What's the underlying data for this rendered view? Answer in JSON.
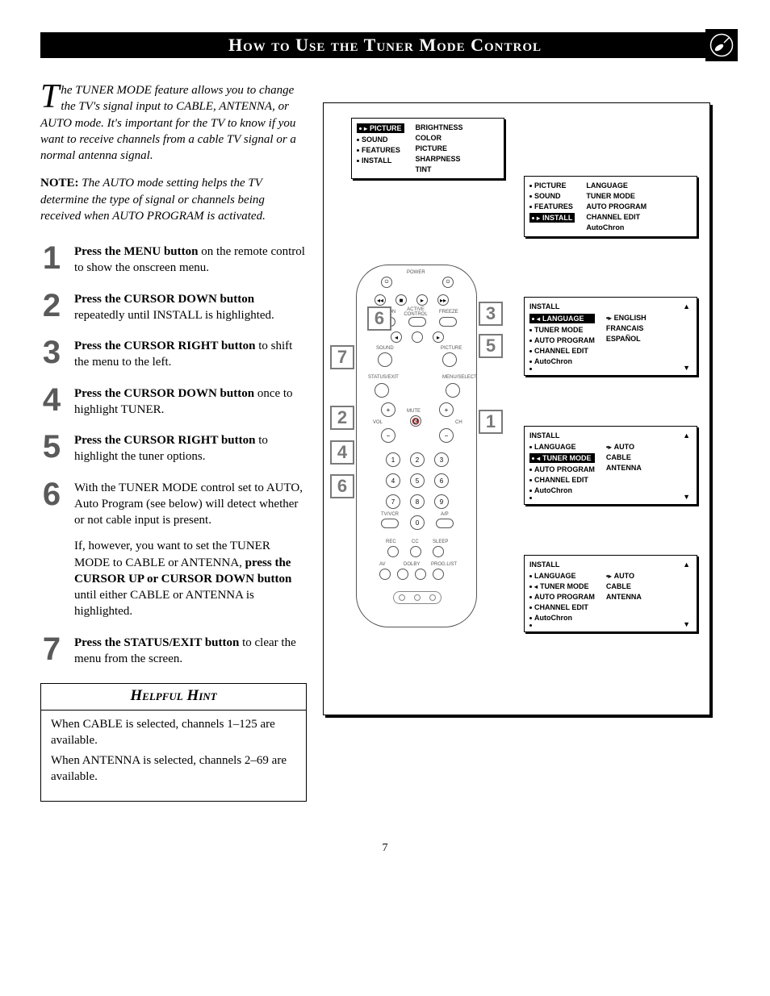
{
  "title": "How to Use the Tuner Mode Control",
  "intro": {
    "dropcap": "T",
    "body": "he TUNER MODE feature allows you to change the TV's signal input to CABLE, ANTENNA, or AUTO mode. It's important for the TV to know if you want to receive channels from a cable TV signal or a normal antenna signal."
  },
  "note": {
    "label": "NOTE:",
    "body": "The AUTO mode setting helps the TV determine the type of signal or channels being received when AUTO PROGRAM is activated."
  },
  "steps": [
    {
      "num": "1",
      "paras": [
        {
          "runs": [
            {
              "b": true,
              "t": "Press the MENU button"
            },
            {
              "b": false,
              "t": " on the remote control to show the onscreen menu."
            }
          ]
        }
      ]
    },
    {
      "num": "2",
      "paras": [
        {
          "runs": [
            {
              "b": true,
              "t": "Press the CURSOR DOWN button"
            },
            {
              "b": false,
              "t": " repeatedly until INSTALL is highlighted."
            }
          ]
        }
      ]
    },
    {
      "num": "3",
      "paras": [
        {
          "runs": [
            {
              "b": true,
              "t": "Press the CURSOR RIGHT button"
            },
            {
              "b": false,
              "t": " to shift the menu to the left."
            }
          ]
        }
      ]
    },
    {
      "num": "4",
      "paras": [
        {
          "runs": [
            {
              "b": true,
              "t": "Press the CURSOR DOWN button"
            },
            {
              "b": false,
              "t": " once to highlight TUNER."
            }
          ]
        }
      ]
    },
    {
      "num": "5",
      "paras": [
        {
          "runs": [
            {
              "b": true,
              "t": "Press the CURSOR RIGHT button"
            },
            {
              "b": false,
              "t": " to highlight the tuner options."
            }
          ]
        }
      ]
    },
    {
      "num": "6",
      "paras": [
        {
          "runs": [
            {
              "b": false,
              "t": "With the TUNER MODE control set to AUTO,  Auto Program (see below) will detect whether or not cable input is present."
            }
          ]
        },
        {
          "runs": [
            {
              "b": false,
              "t": "If, however, you want to set the TUNER MODE to CABLE or ANTENNA, "
            },
            {
              "b": true,
              "t": "press the CURSOR UP or CURSOR DOWN button"
            },
            {
              "b": false,
              "t": " until either CABLE or ANTENNA is highlighted."
            }
          ]
        }
      ]
    },
    {
      "num": "7",
      "paras": [
        {
          "runs": [
            {
              "b": true,
              "t": "Press the STATUS/EXIT button"
            },
            {
              "b": false,
              "t": " to clear the menu from the screen."
            }
          ]
        }
      ]
    }
  ],
  "hint": {
    "title": "Helpful Hint",
    "lines": [
      "When CABLE is selected, channels 1–125 are available.",
      "When ANTENNA is selected, channels 2–69 are available."
    ]
  },
  "pageNumber": "7",
  "screens": {
    "top": {
      "left": [
        {
          "hl": true,
          "arrow": true,
          "label": "PICTURE"
        },
        {
          "hl": false,
          "label": "SOUND"
        },
        {
          "hl": false,
          "label": "FEATURES"
        },
        {
          "hl": false,
          "label": "INSTALL"
        }
      ],
      "right": [
        "BRIGHTNESS",
        "COLOR",
        "PICTURE",
        "SHARPNESS",
        "TINT"
      ]
    },
    "installMain": {
      "left": [
        {
          "label": "PICTURE"
        },
        {
          "label": "SOUND"
        },
        {
          "label": "FEATURES"
        },
        {
          "hl": true,
          "arrow": true,
          "label": "INSTALL"
        }
      ],
      "right": [
        "LANGUAGE",
        "TUNER MODE",
        "AUTO PROGRAM",
        "CHANNEL EDIT",
        "AutoChron"
      ]
    },
    "language": {
      "title": "INSTALL",
      "left": [
        {
          "hl": true,
          "larrow": true,
          "label": "LANGUAGE"
        },
        {
          "label": "TUNER MODE"
        },
        {
          "label": "AUTO PROGRAM"
        },
        {
          "label": "CHANNEL EDIT"
        },
        {
          "label": "AutoChron"
        },
        {
          "label": ""
        }
      ],
      "right": [
        {
          "arrow": true,
          "label": "ENGLISH"
        },
        {
          "label": "FRANCAIS"
        },
        {
          "label": "ESPAÑOL"
        }
      ]
    },
    "tuner1": {
      "title": "INSTALL",
      "left": [
        {
          "label": "LANGUAGE"
        },
        {
          "hl": true,
          "larrow": true,
          "label": "TUNER MODE"
        },
        {
          "label": "AUTO PROGRAM"
        },
        {
          "label": "CHANNEL EDIT"
        },
        {
          "label": "AutoChron"
        },
        {
          "label": ""
        }
      ],
      "right": [
        {
          "arrow": true,
          "label": "AUTO"
        },
        {
          "label": "CABLE"
        },
        {
          "label": "ANTENNA"
        }
      ]
    },
    "tuner2": {
      "title": "INSTALL",
      "left": [
        {
          "label": "LANGUAGE"
        },
        {
          "larrow": true,
          "label": "TUNER MODE"
        },
        {
          "label": "AUTO PROGRAM"
        },
        {
          "label": "CHANNEL EDIT"
        },
        {
          "label": "AutoChron"
        },
        {
          "label": ""
        }
      ],
      "right": [
        {
          "arrow": true,
          "label": "AUTO"
        },
        {
          "label": "CABLE"
        },
        {
          "label": "ANTENNA"
        }
      ]
    }
  },
  "remote": {
    "labels": {
      "power": "POWER",
      "pipon": "PIP ON",
      "active": "ACTIVE CONTROL",
      "freeze": "FREEZE",
      "sound": "SOUND",
      "picture": "PICTURE",
      "status": "STATUS/EXIT",
      "menu": "MENU/SELECT",
      "mute": "MUTE",
      "vol": "VOL",
      "ch": "CH",
      "tvvcr": "TV/VCR",
      "ap": "A/P",
      "rec": "REC",
      "cc": "CC",
      "sleep": "SLEEP",
      "av": "AV",
      "dolby": "DOLBY",
      "proglist": "PROG.LIST"
    },
    "numpad": [
      "1",
      "2",
      "3",
      "4",
      "5",
      "6",
      "7",
      "8",
      "9",
      "0"
    ]
  },
  "callouts": [
    "1",
    "2",
    "3",
    "4",
    "5",
    "6",
    "7"
  ]
}
